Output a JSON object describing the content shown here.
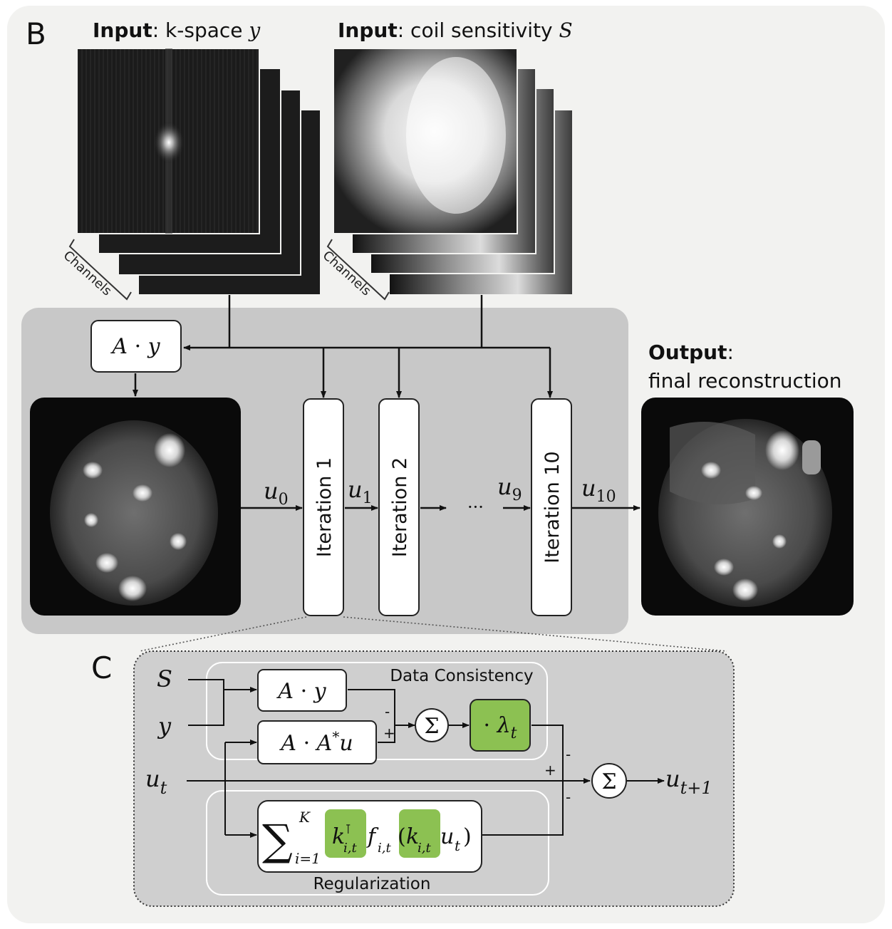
{
  "panels": {
    "b": "B",
    "c": "C"
  },
  "inputs": {
    "kspace": {
      "bold": "Input",
      "rest": ": k-space ",
      "sym": "y"
    },
    "coil": {
      "bold": "Input",
      "rest": ": coil sensitivity ",
      "sym": "S"
    },
    "channels_label": "Channels"
  },
  "box_ay": {
    "a": "A",
    "dot": " · ",
    "y": "y"
  },
  "iterations": [
    "Iteration 1",
    "Iteration 2",
    "Iteration 10"
  ],
  "flow": {
    "u0": {
      "b": "u",
      "s": "0"
    },
    "u1": {
      "b": "u",
      "s": "1"
    },
    "ellipsis": "···",
    "u9": {
      "b": "u",
      "s": "9"
    },
    "u10": {
      "b": "u",
      "s": "10"
    }
  },
  "output": {
    "bold": "Output",
    "colon": ":",
    "line2": "final reconstruction"
  },
  "detail": {
    "in_s": "S",
    "in_y": "y",
    "in_ut": {
      "b": "u",
      "s": "t"
    },
    "out": {
      "b": "u",
      "s": "t+1"
    },
    "dc_title": "Data Consistency",
    "reg_title": "Regularization",
    "box_ay": {
      "a": "A",
      "dot": " · ",
      "y": "y"
    },
    "box_aau": {
      "a": "A",
      "dot": " · ",
      "a2": "A",
      "star": "*",
      "u": "u"
    },
    "sigma": "Σ",
    "lambda": {
      "dot": "· ",
      "l": "λ",
      "s": "t"
    },
    "signs": {
      "minus1": "-",
      "plus1": "+",
      "plus2": "+",
      "minus2": "-",
      "minus3": "-"
    },
    "reg_formula": {
      "sum": "∑",
      "upper": "K",
      "lower": "i=1",
      "k1": "k",
      "k1_sup": "⊺",
      "k1_sub": "i,t",
      "f": "f",
      "f_sub": "i,t",
      "open": "(",
      "k2": "k",
      "k2_sub": "i,t",
      "u": "u",
      "u_sub": "t",
      "close": ")"
    }
  },
  "colors": {
    "panel_bg": "#f2f2f0",
    "box_gray": "#c8c8c8",
    "detail_gray": "#cfcfcf",
    "green": "#8cc152",
    "dark": "#111111"
  }
}
